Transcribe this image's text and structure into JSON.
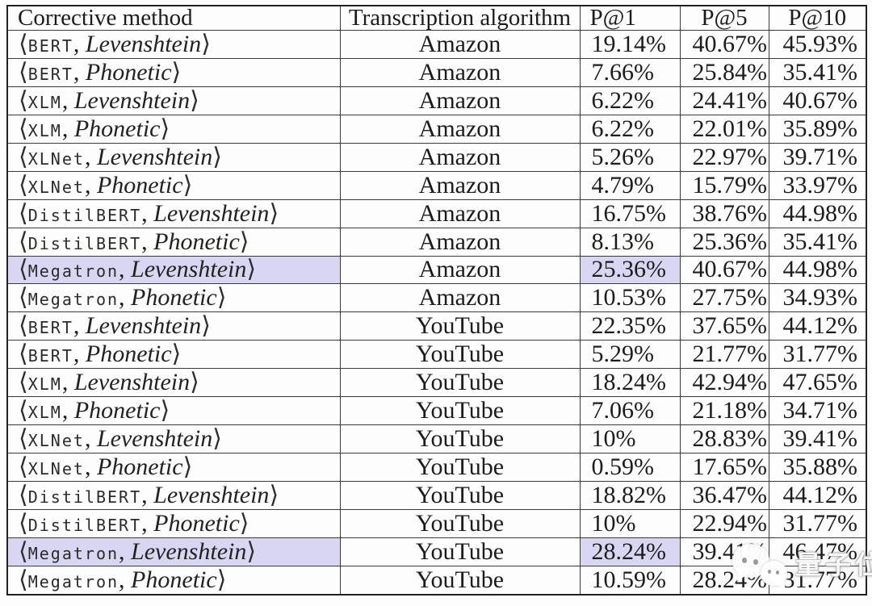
{
  "table": {
    "columns": [
      "Corrective method",
      "Transcription algorithm",
      "P@1",
      "P@5",
      "P@10"
    ],
    "bracket_open": "⟨",
    "bracket_close": "⟩",
    "separator": ", ",
    "highlight_color": "#d8d6f2",
    "rows": [
      {
        "model": "BERT",
        "distance": "Levenshtein",
        "algorithm": "Amazon",
        "p1": "19.14%",
        "p5": "40.67%",
        "p10": "45.93%",
        "highlight": false
      },
      {
        "model": "BERT",
        "distance": "Phonetic",
        "algorithm": "Amazon",
        "p1": "7.66%",
        "p5": "25.84%",
        "p10": "35.41%",
        "highlight": false
      },
      {
        "model": "XLM",
        "distance": "Levenshtein",
        "algorithm": "Amazon",
        "p1": "6.22%",
        "p5": "24.41%",
        "p10": "40.67%",
        "highlight": false
      },
      {
        "model": "XLM",
        "distance": "Phonetic",
        "algorithm": "Amazon",
        "p1": "6.22%",
        "p5": "22.01%",
        "p10": "35.89%",
        "highlight": false
      },
      {
        "model": "XLNet",
        "distance": "Levenshtein",
        "algorithm": "Amazon",
        "p1": "5.26%",
        "p5": "22.97%",
        "p10": "39.71%",
        "highlight": false
      },
      {
        "model": "XLNet",
        "distance": "Phonetic",
        "algorithm": "Amazon",
        "p1": "4.79%",
        "p5": "15.79%",
        "p10": "33.97%",
        "highlight": false
      },
      {
        "model": "DistilBERT",
        "distance": "Levenshtein",
        "algorithm": "Amazon",
        "p1": "16.75%",
        "p5": "38.76%",
        "p10": "44.98%",
        "highlight": false
      },
      {
        "model": "DistilBERT",
        "distance": "Phonetic",
        "algorithm": "Amazon",
        "p1": "8.13%",
        "p5": "25.36%",
        "p10": "35.41%",
        "highlight": false
      },
      {
        "model": "Megatron",
        "distance": "Levenshtein",
        "algorithm": "Amazon",
        "p1": "25.36%",
        "p5": "40.67%",
        "p10": "44.98%",
        "highlight": true
      },
      {
        "model": "Megatron",
        "distance": "Phonetic",
        "algorithm": "Amazon",
        "p1": "10.53%",
        "p5": "27.75%",
        "p10": "34.93%",
        "highlight": false
      },
      {
        "model": "BERT",
        "distance": "Levenshtein",
        "algorithm": "YouTube",
        "p1": "22.35%",
        "p5": "37.65%",
        "p10": "44.12%",
        "highlight": false
      },
      {
        "model": "BERT",
        "distance": "Phonetic",
        "algorithm": "YouTube",
        "p1": "5.29%",
        "p5": "21.77%",
        "p10": "31.77%",
        "highlight": false
      },
      {
        "model": "XLM",
        "distance": "Levenshtein",
        "algorithm": "YouTube",
        "p1": "18.24%",
        "p5": "42.94%",
        "p10": "47.65%",
        "highlight": false
      },
      {
        "model": "XLM",
        "distance": "Phonetic",
        "algorithm": "YouTube",
        "p1": "7.06%",
        "p5": "21.18%",
        "p10": "34.71%",
        "highlight": false
      },
      {
        "model": "XLNet",
        "distance": "Levenshtein",
        "algorithm": "YouTube",
        "p1": "10%",
        "p5": "28.83%",
        "p10": "39.41%",
        "highlight": false
      },
      {
        "model": "XLNet",
        "distance": "Phonetic",
        "algorithm": "YouTube",
        "p1": "0.59%",
        "p5": "17.65%",
        "p10": "35.88%",
        "highlight": false
      },
      {
        "model": "DistilBERT",
        "distance": "Levenshtein",
        "algorithm": "YouTube",
        "p1": "18.82%",
        "p5": "36.47%",
        "p10": "44.12%",
        "highlight": false
      },
      {
        "model": "DistilBERT",
        "distance": "Phonetic",
        "algorithm": "YouTube",
        "p1": "10%",
        "p5": "22.94%",
        "p10": "31.77%",
        "highlight": false
      },
      {
        "model": "Megatron",
        "distance": "Levenshtein",
        "algorithm": "YouTube",
        "p1": "28.24%",
        "p5": "39.41%",
        "p10": "46.47%",
        "highlight": true
      },
      {
        "model": "Megatron",
        "distance": "Phonetic",
        "algorithm": "YouTube",
        "p1": "10.59%",
        "p5": "28.24%",
        "p10": "31.77%",
        "highlight": false
      }
    ]
  },
  "watermark": {
    "icon": "wechat-bubbles-icon",
    "text": "量子位"
  }
}
